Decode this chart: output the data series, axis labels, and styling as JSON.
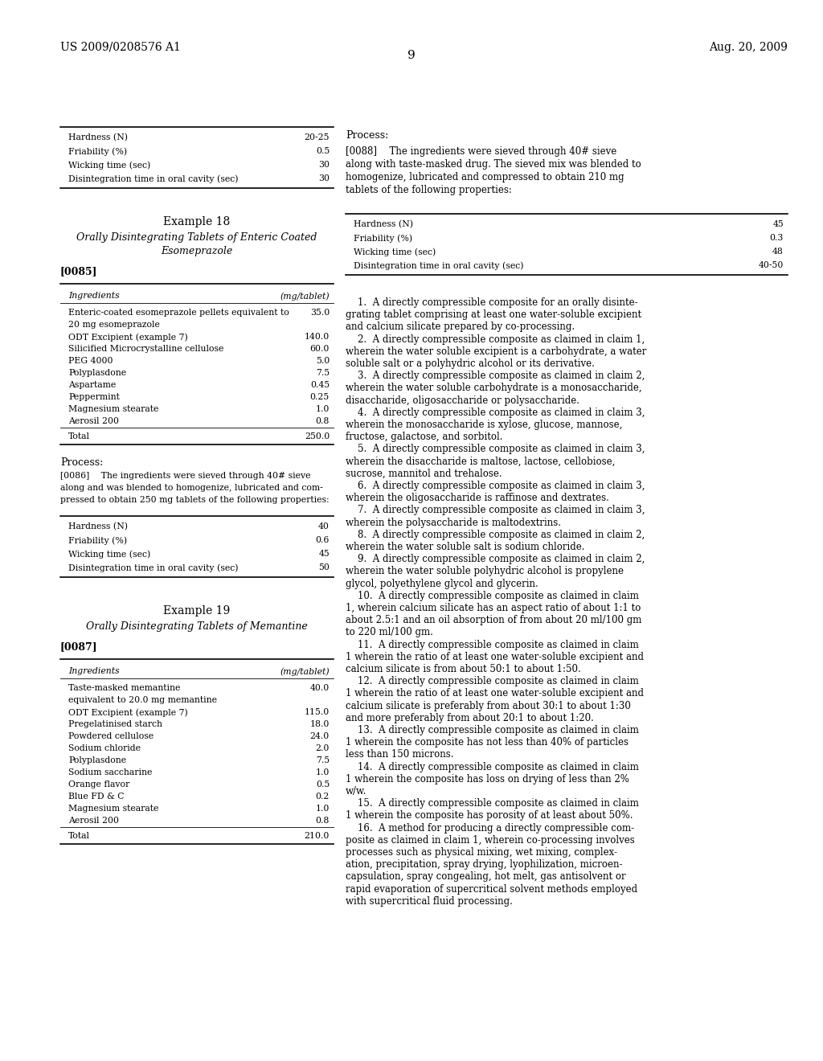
{
  "background_color": "#ffffff",
  "header_left": "US 2009/0208576 A1",
  "header_right": "Aug. 20, 2009",
  "page_number": "9",
  "table_prev_rows": [
    [
      "Hardness (N)",
      "20-25"
    ],
    [
      "Friability (%)",
      "0.5"
    ],
    [
      "Wicking time (sec)",
      "30"
    ],
    [
      "Disintegration time in oral cavity (sec)",
      "30"
    ]
  ],
  "ex18_title1": "Example 18",
  "ex18_title2": "Orally Disintegrating Tablets of Enteric Coated",
  "ex18_title3": "Esomeprazole",
  "ex18_tag": "[0085]",
  "table18_header": [
    "Ingredients",
    "(mg/tablet)"
  ],
  "table18_rows": [
    [
      "Enteric-coated esomeprazole pellets equivalent to",
      "35.0"
    ],
    [
      "20 mg esomeprazole",
      ""
    ],
    [
      "ODT Excipient (example 7)",
      "140.0"
    ],
    [
      "Silicified Microcrystalline cellulose",
      "60.0"
    ],
    [
      "PEG 4000",
      "5.0"
    ],
    [
      "Polyplasdone",
      "7.5"
    ],
    [
      "Aspartame",
      "0.45"
    ],
    [
      "Peppermint",
      "0.25"
    ],
    [
      "Magnesium stearate",
      "1.0"
    ],
    [
      "Aerosil 200",
      "0.8"
    ],
    [
      "Total",
      "250.0"
    ]
  ],
  "ex18_process_label": "Process:",
  "ex18_process_lines": [
    "[0086]  The ingredients were sieved through 40# sieve",
    "along and was blended to homogenize, lubricated and com-",
    "pressed to obtain 250 mg tablets of the following properties:"
  ],
  "table18b_rows": [
    [
      "Hardness (N)",
      "40"
    ],
    [
      "Friability (%)",
      "0.6"
    ],
    [
      "Wicking time (sec)",
      "45"
    ],
    [
      "Disintegration time in oral cavity (sec)",
      "50"
    ]
  ],
  "ex19_title1": "Example 19",
  "ex19_title2": "Orally Disintegrating Tablets of Memantine",
  "ex19_tag": "[0087]",
  "table19_header": [
    "Ingredients",
    "(mg/tablet)"
  ],
  "table19_rows": [
    [
      "Taste-masked memantine",
      "40.0"
    ],
    [
      "equivalent to 20.0 mg memantine",
      ""
    ],
    [
      "ODT Excipient (example 7)",
      "115.0"
    ],
    [
      "Pregelatinised starch",
      "18.0"
    ],
    [
      "Powdered cellulose",
      "24.0"
    ],
    [
      "Sodium chloride",
      "2.0"
    ],
    [
      "Polyplasdone",
      "7.5"
    ],
    [
      "Sodium saccharine",
      "1.0"
    ],
    [
      "Orange flavor",
      "0.5"
    ],
    [
      "Blue FD & C",
      "0.2"
    ],
    [
      "Magnesium stearate",
      "1.0"
    ],
    [
      "Aerosil 200",
      "0.8"
    ],
    [
      "Total",
      "210.0"
    ]
  ],
  "right_process_label": "Process:",
  "right_process_lines": [
    "[0088]  The ingredients were sieved through 40# sieve",
    "along with taste-masked drug. The sieved mix was blended to",
    "homogenize, lubricated and compressed to obtain 210 mg",
    "tablets of the following properties:"
  ],
  "table_right_rows": [
    [
      "Hardness (N)",
      "45"
    ],
    [
      "Friability (%)",
      "0.3"
    ],
    [
      "Wicking time (sec)",
      "48"
    ],
    [
      "Disintegration time in oral cavity (sec)",
      "40-50"
    ]
  ],
  "claims_lines": [
    "    1.  A directly compressible composite for an orally disinte-",
    "grating tablet comprising at least one water-soluble excipient",
    "and calcium silicate prepared by co-processing.",
    "    2.  A directly compressible composite as claimed in claim 1,",
    "wherein the water soluble excipient is a carbohydrate, a water",
    "soluble salt or a polyhydric alcohol or its derivative.",
    "    3.  A directly compressible composite as claimed in claim 2,",
    "wherein the water soluble carbohydrate is a monosaccharide,",
    "disaccharide, oligosaccharide or polysaccharide.",
    "    4.  A directly compressible composite as claimed in claim 3,",
    "wherein the monosaccharide is xylose, glucose, mannose,",
    "fructose, galactose, and sorbitol.",
    "    5.  A directly compressible composite as claimed in claim 3,",
    "wherein the disaccharide is maltose, lactose, cellobiose,",
    "sucrose, mannitol and trehalose.",
    "    6.  A directly compressible composite as claimed in claim 3,",
    "wherein the oligosaccharide is raffinose and dextrates.",
    "    7.  A directly compressible composite as claimed in claim 3,",
    "wherein the polysaccharide is maltodextrins.",
    "    8.  A directly compressible composite as claimed in claim 2,",
    "wherein the water soluble salt is sodium chloride.",
    "    9.  A directly compressible composite as claimed in claim 2,",
    "wherein the water soluble polyhydric alcohol is propylene",
    "glycol, polyethylene glycol and glycerin.",
    "    10.  A directly compressible composite as claimed in claim",
    "1, wherein calcium silicate has an aspect ratio of about 1:1 to",
    "about 2.5:1 and an oil absorption of from about 20 ml/100 gm",
    "to 220 ml/100 gm.",
    "    11.  A directly compressible composite as claimed in claim",
    "1 wherein the ratio of at least one water-soluble excipient and",
    "calcium silicate is from about 50:1 to about 1:50.",
    "    12.  A directly compressible composite as claimed in claim",
    "1 wherein the ratio of at least one water-soluble excipient and",
    "calcium silicate is preferably from about 30:1 to about 1:30",
    "and more preferably from about 20:1 to about 1:20.",
    "    13.  A directly compressible composite as claimed in claim",
    "1 wherein the composite has not less than 40% of particles",
    "less than 150 microns.",
    "    14.  A directly compressible composite as claimed in claim",
    "1 wherein the composite has loss on drying of less than 2%",
    "w/w.",
    "    15.  A directly compressible composite as claimed in claim",
    "1 wherein the composite has porosity of at least about 50%.",
    "    16.  A method for producing a directly compressible com-",
    "posite as claimed in claim 1, wherein co-processing involves",
    "processes such as physical mixing, wet mixing, complex-",
    "ation, precipitation, spray drying, lyophilization, microen-",
    "capsulation, spray congealing, hot melt, gas antisolvent or",
    "rapid evaporation of supercritical solvent methods employed",
    "with supercritical fluid processing."
  ]
}
